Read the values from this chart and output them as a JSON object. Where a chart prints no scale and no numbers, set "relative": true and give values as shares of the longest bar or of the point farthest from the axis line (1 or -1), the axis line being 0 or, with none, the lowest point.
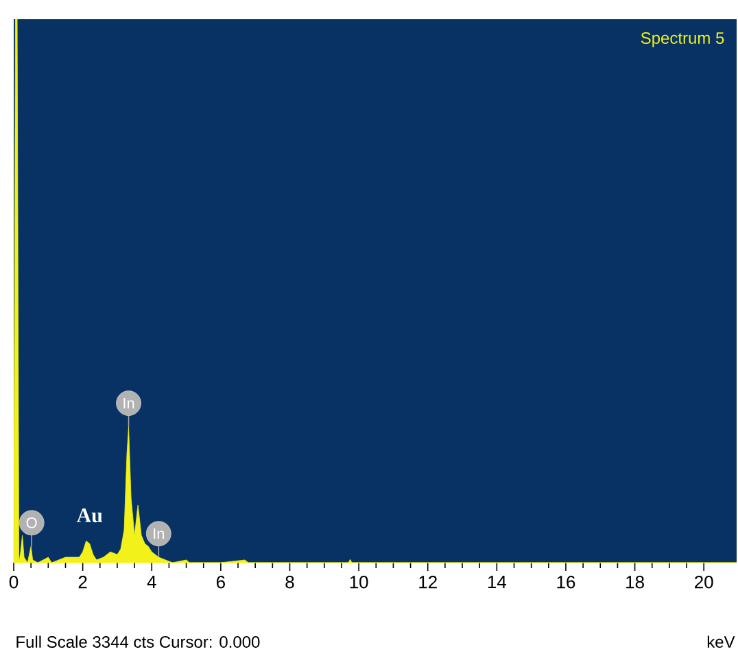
{
  "chart_data": {
    "type": "area",
    "title": "Spectrum 5",
    "xlabel": "keV",
    "relative": true,
    "color": "#f2f21a",
    "x": [
      0,
      0.05,
      0.1,
      0.15,
      0.2,
      0.25,
      0.3,
      0.4,
      0.5,
      0.55,
      0.7,
      1.0,
      1.1,
      1.5,
      1.9,
      2.0,
      2.1,
      2.2,
      2.3,
      2.4,
      2.6,
      2.8,
      3.0,
      3.1,
      3.2,
      3.28,
      3.33,
      3.4,
      3.5,
      3.6,
      3.7,
      3.8,
      3.9,
      4.0,
      4.2,
      4.4,
      4.6,
      5.0,
      5.1,
      6.0,
      6.7,
      6.8,
      9.7,
      9.75,
      9.8,
      20.95
    ],
    "values": [
      0,
      1.0,
      1.0,
      0.0,
      0.02,
      0.05,
      0.01,
      0.0,
      0.03,
      0.005,
      0,
      0.01,
      0,
      0.01,
      0.01,
      0.02,
      0.04,
      0.035,
      0.015,
      0.005,
      0.01,
      0.02,
      0.015,
      0.025,
      0.06,
      0.2,
      0.25,
      0.12,
      0.05,
      0.106,
      0.05,
      0.035,
      0.03,
      0.02,
      0.01,
      0.005,
      0,
      0.005,
      0,
      0,
      0.005,
      0,
      0,
      0.006,
      0,
      0
    ],
    "xlim": [
      0,
      20.95
    ],
    "xticks": [
      0,
      2,
      4,
      6,
      8,
      10,
      12,
      14,
      16,
      18,
      20
    ],
    "annotations": [
      "Full Scale 3344 cts Cursor: 0.000",
      {
        "text": "O",
        "x": 0.52,
        "y": 0.03
      },
      {
        "text": "In",
        "x": 3.33,
        "y": 0.25
      },
      {
        "text": "Au",
        "x": 2.2,
        "y": 0.04
      },
      {
        "text": "In",
        "x": 4.2,
        "y": 0.01
      }
    ]
  }
}
